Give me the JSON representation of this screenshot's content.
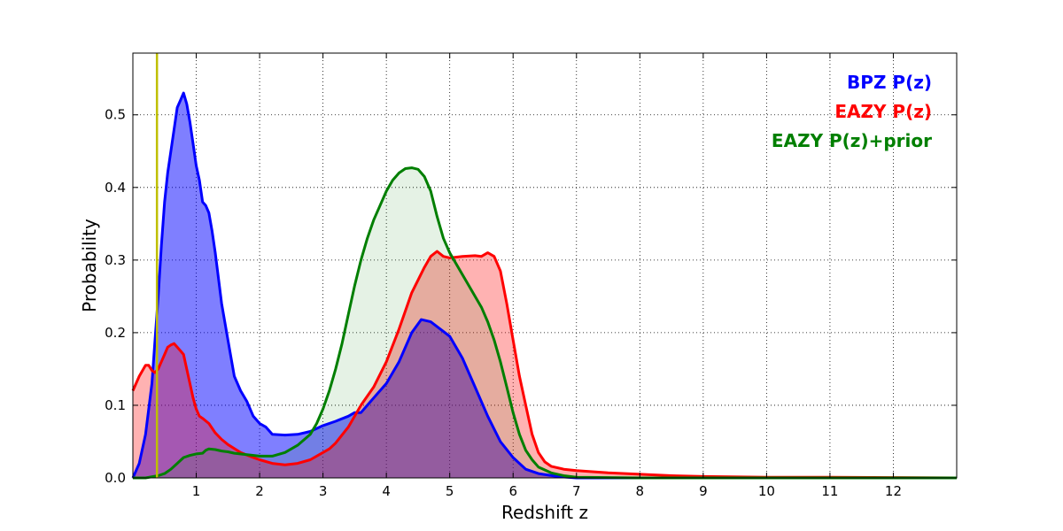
{
  "chart_data": {
    "type": "area",
    "title": "",
    "xlabel": "Redshift z",
    "ylabel": "Probability",
    "xlim": [
      0,
      13
    ],
    "ylim": [
      0,
      0.585
    ],
    "x_ticks": [
      1,
      2,
      3,
      4,
      5,
      6,
      7,
      8,
      9,
      10,
      11,
      12
    ],
    "y_ticks": [
      0.0,
      0.1,
      0.2,
      0.3,
      0.4,
      0.5
    ],
    "x_tick_labels": [
      "1",
      "2",
      "3",
      "4",
      "5",
      "6",
      "7",
      "8",
      "9",
      "10",
      "11",
      "12"
    ],
    "y_tick_labels": [
      "0.0",
      "0.1",
      "0.2",
      "0.3",
      "0.4",
      "0.5"
    ],
    "grid": true,
    "legend_placement": "top-right",
    "vertical_line": {
      "x": 0.38,
      "color": "#bfbf00"
    },
    "series": [
      {
        "name": "BPZ P(z)",
        "color": "#0000ff",
        "fill": "#0000ff",
        "fill_opacity": 0.5,
        "points": [
          [
            0,
            0.0
          ],
          [
            0.1,
            0.02
          ],
          [
            0.2,
            0.06
          ],
          [
            0.3,
            0.13
          ],
          [
            0.35,
            0.19
          ],
          [
            0.4,
            0.25
          ],
          [
            0.45,
            0.32
          ],
          [
            0.5,
            0.38
          ],
          [
            0.55,
            0.42
          ],
          [
            0.6,
            0.45
          ],
          [
            0.65,
            0.48
          ],
          [
            0.7,
            0.51
          ],
          [
            0.75,
            0.52
          ],
          [
            0.8,
            0.53
          ],
          [
            0.85,
            0.515
          ],
          [
            0.9,
            0.49
          ],
          [
            0.95,
            0.46
          ],
          [
            1.0,
            0.43
          ],
          [
            1.05,
            0.41
          ],
          [
            1.1,
            0.38
          ],
          [
            1.15,
            0.375
          ],
          [
            1.2,
            0.365
          ],
          [
            1.25,
            0.34
          ],
          [
            1.3,
            0.31
          ],
          [
            1.4,
            0.24
          ],
          [
            1.5,
            0.19
          ],
          [
            1.55,
            0.165
          ],
          [
            1.6,
            0.14
          ],
          [
            1.7,
            0.12
          ],
          [
            1.8,
            0.105
          ],
          [
            1.9,
            0.085
          ],
          [
            2.0,
            0.075
          ],
          [
            2.1,
            0.07
          ],
          [
            2.2,
            0.06
          ],
          [
            2.4,
            0.059
          ],
          [
            2.6,
            0.06
          ],
          [
            2.8,
            0.064
          ],
          [
            3.0,
            0.072
          ],
          [
            3.2,
            0.078
          ],
          [
            3.4,
            0.085
          ],
          [
            3.5,
            0.09
          ],
          [
            3.6,
            0.09
          ],
          [
            3.7,
            0.1
          ],
          [
            3.8,
            0.11
          ],
          [
            4.0,
            0.13
          ],
          [
            4.2,
            0.16
          ],
          [
            4.4,
            0.2
          ],
          [
            4.55,
            0.218
          ],
          [
            4.7,
            0.215
          ],
          [
            4.85,
            0.205
          ],
          [
            5.0,
            0.195
          ],
          [
            5.2,
            0.165
          ],
          [
            5.4,
            0.125
          ],
          [
            5.6,
            0.085
          ],
          [
            5.8,
            0.05
          ],
          [
            6.0,
            0.028
          ],
          [
            6.2,
            0.012
          ],
          [
            6.4,
            0.006
          ],
          [
            6.7,
            0.002
          ],
          [
            7.0,
            0.0
          ],
          [
            13.0,
            0.0
          ]
        ]
      },
      {
        "name": "EAZY P(z)",
        "color": "#ff0000",
        "fill": "#ff0000",
        "fill_opacity": 0.3,
        "points": [
          [
            0,
            0.12
          ],
          [
            0.1,
            0.14
          ],
          [
            0.2,
            0.155
          ],
          [
            0.25,
            0.155
          ],
          [
            0.3,
            0.148
          ],
          [
            0.35,
            0.145
          ],
          [
            0.4,
            0.15
          ],
          [
            0.45,
            0.16
          ],
          [
            0.5,
            0.17
          ],
          [
            0.55,
            0.18
          ],
          [
            0.6,
            0.183
          ],
          [
            0.65,
            0.185
          ],
          [
            0.7,
            0.18
          ],
          [
            0.75,
            0.175
          ],
          [
            0.8,
            0.17
          ],
          [
            0.85,
            0.15
          ],
          [
            0.9,
            0.13
          ],
          [
            0.95,
            0.11
          ],
          [
            1.0,
            0.095
          ],
          [
            1.05,
            0.085
          ],
          [
            1.1,
            0.082
          ],
          [
            1.2,
            0.075
          ],
          [
            1.3,
            0.062
          ],
          [
            1.4,
            0.053
          ],
          [
            1.5,
            0.046
          ],
          [
            1.7,
            0.035
          ],
          [
            1.9,
            0.028
          ],
          [
            2.0,
            0.025
          ],
          [
            2.2,
            0.02
          ],
          [
            2.4,
            0.018
          ],
          [
            2.6,
            0.02
          ],
          [
            2.8,
            0.025
          ],
          [
            3.0,
            0.035
          ],
          [
            3.1,
            0.04
          ],
          [
            3.2,
            0.048
          ],
          [
            3.4,
            0.07
          ],
          [
            3.6,
            0.1
          ],
          [
            3.8,
            0.125
          ],
          [
            4.0,
            0.16
          ],
          [
            4.2,
            0.205
          ],
          [
            4.4,
            0.255
          ],
          [
            4.6,
            0.29
          ],
          [
            4.7,
            0.305
          ],
          [
            4.8,
            0.312
          ],
          [
            4.9,
            0.305
          ],
          [
            5.0,
            0.303
          ],
          [
            5.2,
            0.305
          ],
          [
            5.4,
            0.306
          ],
          [
            5.5,
            0.305
          ],
          [
            5.6,
            0.31
          ],
          [
            5.7,
            0.305
          ],
          [
            5.8,
            0.285
          ],
          [
            5.9,
            0.24
          ],
          [
            6.0,
            0.19
          ],
          [
            6.1,
            0.14
          ],
          [
            6.2,
            0.1
          ],
          [
            6.3,
            0.06
          ],
          [
            6.4,
            0.035
          ],
          [
            6.5,
            0.022
          ],
          [
            6.6,
            0.016
          ],
          [
            6.8,
            0.012
          ],
          [
            7.0,
            0.01
          ],
          [
            7.5,
            0.007
          ],
          [
            8.0,
            0.005
          ],
          [
            8.5,
            0.003
          ],
          [
            9.0,
            0.002
          ],
          [
            10.0,
            0.001
          ],
          [
            11.0,
            0.001
          ],
          [
            12.0,
            0.0005
          ],
          [
            13.0,
            0.0
          ]
        ]
      },
      {
        "name": "EAZY P(z)+prior",
        "color": "#007f00",
        "fill": "#007f00",
        "fill_opacity": 0.1,
        "points": [
          [
            0,
            0.0
          ],
          [
            0.2,
            0.0
          ],
          [
            0.4,
            0.003
          ],
          [
            0.5,
            0.006
          ],
          [
            0.6,
            0.012
          ],
          [
            0.7,
            0.02
          ],
          [
            0.8,
            0.028
          ],
          [
            0.9,
            0.031
          ],
          [
            1.0,
            0.033
          ],
          [
            1.1,
            0.034
          ],
          [
            1.15,
            0.038
          ],
          [
            1.2,
            0.04
          ],
          [
            1.3,
            0.039
          ],
          [
            1.4,
            0.037
          ],
          [
            1.5,
            0.036
          ],
          [
            1.6,
            0.034
          ],
          [
            1.8,
            0.032
          ],
          [
            2.0,
            0.03
          ],
          [
            2.2,
            0.03
          ],
          [
            2.4,
            0.035
          ],
          [
            2.6,
            0.045
          ],
          [
            2.8,
            0.06
          ],
          [
            2.9,
            0.075
          ],
          [
            3.0,
            0.095
          ],
          [
            3.1,
            0.12
          ],
          [
            3.2,
            0.15
          ],
          [
            3.3,
            0.185
          ],
          [
            3.4,
            0.225
          ],
          [
            3.5,
            0.265
          ],
          [
            3.6,
            0.3
          ],
          [
            3.7,
            0.33
          ],
          [
            3.8,
            0.355
          ],
          [
            3.9,
            0.375
          ],
          [
            4.0,
            0.395
          ],
          [
            4.1,
            0.41
          ],
          [
            4.2,
            0.42
          ],
          [
            4.3,
            0.426
          ],
          [
            4.4,
            0.427
          ],
          [
            4.5,
            0.425
          ],
          [
            4.6,
            0.415
          ],
          [
            4.7,
            0.395
          ],
          [
            4.8,
            0.36
          ],
          [
            4.9,
            0.33
          ],
          [
            5.0,
            0.31
          ],
          [
            5.1,
            0.295
          ],
          [
            5.2,
            0.28
          ],
          [
            5.3,
            0.265
          ],
          [
            5.4,
            0.25
          ],
          [
            5.5,
            0.235
          ],
          [
            5.6,
            0.215
          ],
          [
            5.7,
            0.19
          ],
          [
            5.8,
            0.16
          ],
          [
            5.9,
            0.125
          ],
          [
            6.0,
            0.09
          ],
          [
            6.1,
            0.06
          ],
          [
            6.2,
            0.038
          ],
          [
            6.3,
            0.025
          ],
          [
            6.4,
            0.015
          ],
          [
            6.6,
            0.007
          ],
          [
            6.8,
            0.003
          ],
          [
            7.0,
            0.001
          ],
          [
            8.0,
            0.0
          ],
          [
            13.0,
            0.0
          ]
        ]
      }
    ]
  }
}
